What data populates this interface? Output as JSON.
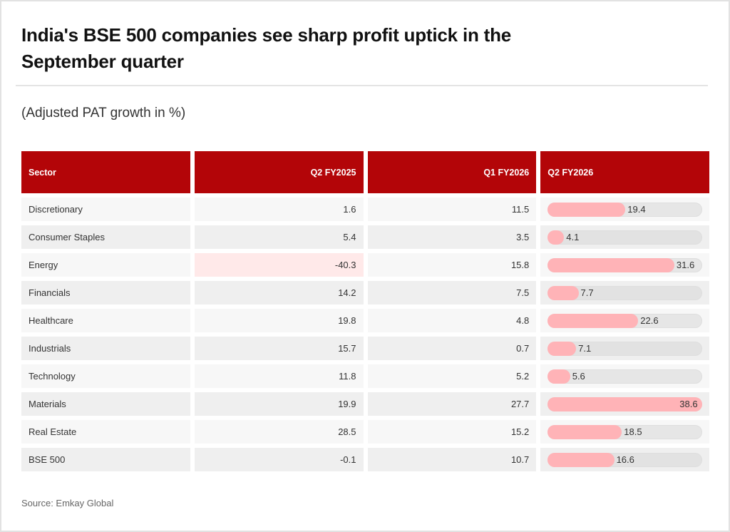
{
  "title": "India's BSE 500 companies see sharp profit uptick in the September quarter",
  "subtitle": "(Adjusted PAT growth in %)",
  "source": "Source: Emkay Global",
  "colors": {
    "header": "#b30508",
    "bar_fill": "#ffb3b7",
    "bar_track": "#e6e6e6",
    "negative_highlight": "#ffe9e9"
  },
  "chart_data": {
    "type": "table",
    "title": "India's BSE 500 companies see sharp profit uptick in the September quarter",
    "subtitle": "(Adjusted PAT growth in %)",
    "columns": [
      "Sector",
      "Q2 FY2025",
      "Q1 FY2026",
      "Q2 FY2026"
    ],
    "bar_column": "Q2 FY2026",
    "bar_max": 38.6,
    "rows": [
      {
        "sector": "Discretionary",
        "q2fy2025": "1.6",
        "q1fy2026": "11.5",
        "q2fy2026": "19.4",
        "highlight_q2fy2025": false
      },
      {
        "sector": "Consumer Staples",
        "q2fy2025": "5.4",
        "q1fy2026": "3.5",
        "q2fy2026": "4.1",
        "highlight_q2fy2025": false
      },
      {
        "sector": "Energy",
        "q2fy2025": "-40.3",
        "q1fy2026": "15.8",
        "q2fy2026": "31.6",
        "highlight_q2fy2025": true
      },
      {
        "sector": "Financials",
        "q2fy2025": "14.2",
        "q1fy2026": "7.5",
        "q2fy2026": "7.7",
        "highlight_q2fy2025": false
      },
      {
        "sector": "Healthcare",
        "q2fy2025": "19.8",
        "q1fy2026": "4.8",
        "q2fy2026": "22.6",
        "highlight_q2fy2025": false
      },
      {
        "sector": "Industrials",
        "q2fy2025": "15.7",
        "q1fy2026": "0.7",
        "q2fy2026": "7.1",
        "highlight_q2fy2025": false
      },
      {
        "sector": "Technology",
        "q2fy2025": "11.8",
        "q1fy2026": "5.2",
        "q2fy2026": "5.6",
        "highlight_q2fy2025": false
      },
      {
        "sector": "Materials",
        "q2fy2025": "19.9",
        "q1fy2026": "27.7",
        "q2fy2026": "38.6",
        "highlight_q2fy2025": false
      },
      {
        "sector": "Real Estate",
        "q2fy2025": "28.5",
        "q1fy2026": "15.2",
        "q2fy2026": "18.5",
        "highlight_q2fy2025": false
      },
      {
        "sector": "BSE 500",
        "q2fy2025": "-0.1",
        "q1fy2026": "10.7",
        "q2fy2026": "16.6",
        "highlight_q2fy2025": false
      }
    ]
  }
}
